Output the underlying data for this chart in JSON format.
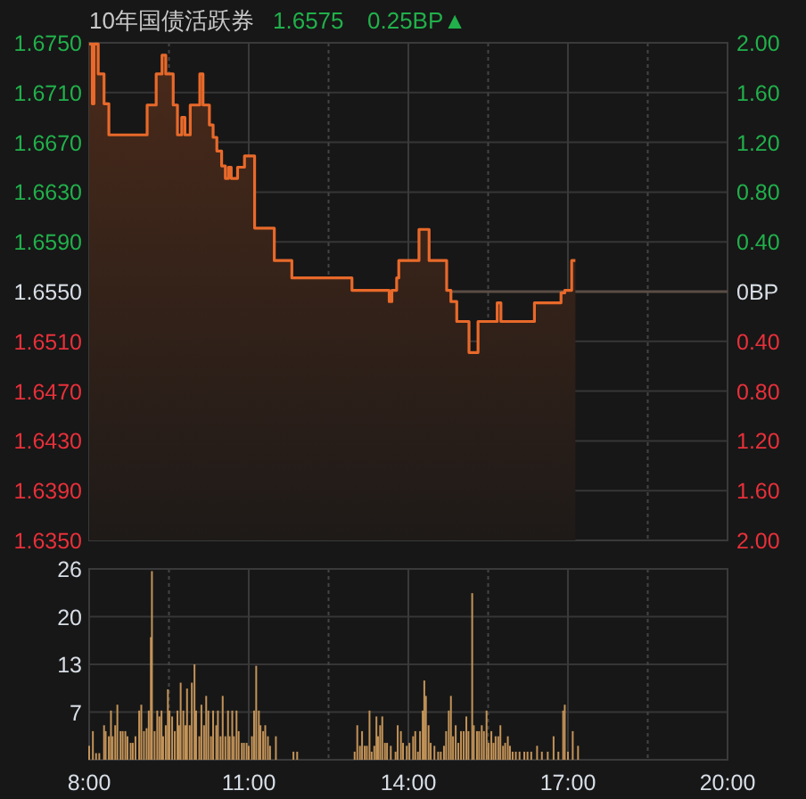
{
  "chart_data": [
    {
      "type": "area",
      "title": "10年国债活跃券",
      "annotations": [
        "1.6575",
        "0.25BP▲"
      ],
      "x": [
        8.0,
        8.06,
        8.06,
        8.09,
        8.09,
        8.17,
        8.17,
        8.28,
        8.28,
        8.37,
        8.37,
        9.09,
        9.09,
        9.26,
        9.26,
        9.37,
        9.37,
        9.44,
        9.44,
        9.58,
        9.58,
        9.66,
        9.66,
        9.74,
        9.74,
        9.8,
        9.8,
        9.9,
        9.9,
        10.08,
        10.08,
        10.14,
        10.14,
        10.26,
        10.26,
        10.33,
        10.33,
        10.4,
        10.4,
        10.49,
        10.49,
        10.56,
        10.56,
        10.62,
        10.62,
        10.67,
        10.67,
        10.79,
        10.79,
        10.92,
        10.92,
        11.11,
        11.11,
        11.48,
        11.48,
        11.81,
        11.81,
        12.94,
        12.94,
        13.64,
        13.64,
        13.69,
        13.69,
        13.78,
        13.78,
        13.82,
        13.82,
        14.2,
        14.2,
        14.39,
        14.39,
        14.72,
        14.72,
        14.8,
        14.8,
        14.91,
        14.91,
        15.14,
        15.14,
        15.31,
        15.31,
        15.67,
        15.67,
        15.74,
        15.74,
        16.37,
        16.37,
        16.87,
        16.87,
        16.94,
        16.94,
        17.07,
        17.07,
        17.14
      ],
      "series": [
        {
          "color": "#e8692a",
          "values": [
            1.6749,
            1.6749,
            1.6701,
            1.6701,
            1.6749,
            1.6749,
            1.6725,
            1.6725,
            1.6701,
            1.6701,
            1.6676,
            1.6676,
            1.67,
            1.67,
            1.6725,
            1.6725,
            1.674,
            1.674,
            1.6725,
            1.6725,
            1.67,
            1.67,
            1.6676,
            1.6676,
            1.669,
            1.669,
            1.6676,
            1.6676,
            1.67,
            1.67,
            1.6725,
            1.6725,
            1.67,
            1.67,
            1.6684,
            1.6684,
            1.6674,
            1.6674,
            1.6663,
            1.6663,
            1.6651,
            1.6651,
            1.6641,
            1.6641,
            1.665,
            1.665,
            1.6641,
            1.6641,
            1.665,
            1.665,
            1.6659,
            1.6659,
            1.6601,
            1.6601,
            1.6575,
            1.6575,
            1.6561,
            1.6561,
            1.6551,
            1.6551,
            1.6542,
            1.6542,
            1.6551,
            1.6551,
            1.6561,
            1.6561,
            1.6575,
            1.6575,
            1.66,
            1.66,
            1.6575,
            1.6575,
            1.6551,
            1.6551,
            1.6542,
            1.6542,
            1.6526,
            1.6526,
            1.6501,
            1.6501,
            1.6526,
            1.6526,
            1.6541,
            1.6541,
            1.6526,
            1.6526,
            1.6541,
            1.6541,
            1.6549,
            1.6549,
            1.6551,
            1.6551,
            1.6575,
            1.6575
          ]
        }
      ],
      "xlim": [
        8,
        20
      ],
      "xticks": [
        {
          "value": 8,
          "label": null
        },
        {
          "value": 9.5,
          "label": null
        },
        {
          "value": 11,
          "label": null
        },
        {
          "value": 12.5,
          "label": null
        },
        {
          "value": 14,
          "label": null
        },
        {
          "value": 15.5,
          "label": null
        },
        {
          "value": 17,
          "label": null
        },
        {
          "value": 18.5,
          "label": null
        },
        {
          "value": 20,
          "label": null
        }
      ],
      "ylim": [
        1.635,
        1.675
      ],
      "yticks": [
        {
          "value": 1.675,
          "label": "1.6750"
        },
        {
          "value": 1.671,
          "label": "1.6710"
        },
        {
          "value": 1.667,
          "label": "1.6670"
        },
        {
          "value": 1.663,
          "label": "1.6630"
        },
        {
          "value": 1.659,
          "label": "1.6590"
        },
        {
          "value": 1.655,
          "label": "1.6550"
        },
        {
          "value": 1.651,
          "label": "1.6510"
        },
        {
          "value": 1.647,
          "label": "1.6470"
        },
        {
          "value": 1.643,
          "label": "1.6430"
        },
        {
          "value": 1.639,
          "label": "1.6390"
        },
        {
          "value": 1.635,
          "label": "1.6350"
        }
      ],
      "y2lim": [
        -2,
        2
      ],
      "y2ticks": [
        {
          "value": 2,
          "label": "2.00"
        },
        {
          "value": 1.6,
          "label": "1.60"
        },
        {
          "value": 1.2,
          "label": "1.20"
        },
        {
          "value": 0.8,
          "label": "0.80"
        },
        {
          "value": 0.4,
          "label": "0.40"
        },
        {
          "value": 0,
          "label": "0BP"
        },
        {
          "value": -0.4,
          "label": "0.40"
        },
        {
          "value": -0.8,
          "label": "0.80"
        },
        {
          "value": -1.2,
          "label": "1.20"
        },
        {
          "value": -1.6,
          "label": "1.60"
        },
        {
          "value": -2,
          "label": "2.00"
        }
      ],
      "ref_lines": [
        {
          "axis": "y",
          "value": 1.655,
          "color": "#5b4d45"
        }
      ],
      "grid": true,
      "tick_labels": "y"
    },
    {
      "type": "bar",
      "color": "#c39358",
      "x": [
        8.0,
        8.07,
        8.13,
        8.19,
        8.28,
        8.31,
        8.37,
        8.41,
        8.44,
        8.49,
        8.53,
        8.59,
        8.63,
        8.68,
        8.72,
        8.78,
        8.82,
        8.87,
        8.94,
        8.98,
        9.03,
        9.08,
        9.12,
        9.16,
        9.18,
        9.23,
        9.28,
        9.32,
        9.36,
        9.39,
        9.44,
        9.48,
        9.51,
        9.56,
        9.61,
        9.66,
        9.69,
        9.72,
        9.77,
        9.81,
        9.84,
        9.89,
        9.93,
        9.98,
        10.01,
        10.07,
        10.11,
        10.16,
        10.2,
        10.24,
        10.29,
        10.33,
        10.39,
        10.42,
        10.47,
        10.51,
        10.56,
        10.61,
        10.64,
        10.69,
        10.72,
        10.77,
        10.81,
        10.87,
        10.91,
        10.96,
        11.0,
        11.06,
        11.1,
        11.14,
        11.19,
        11.22,
        11.27,
        11.31,
        11.36,
        11.4,
        11.51,
        11.84,
        11.91,
        12.99,
        13.04,
        13.09,
        13.13,
        13.18,
        13.22,
        13.27,
        13.31,
        13.36,
        13.4,
        13.43,
        13.47,
        13.51,
        13.56,
        13.6,
        13.67,
        13.76,
        13.8,
        13.86,
        13.9,
        13.97,
        14.02,
        14.09,
        14.13,
        14.18,
        14.22,
        14.27,
        14.3,
        14.33,
        14.38,
        14.42,
        14.49,
        14.56,
        14.61,
        14.67,
        14.71,
        14.76,
        14.8,
        14.84,
        14.89,
        14.94,
        14.99,
        15.04,
        15.09,
        15.13,
        15.2,
        15.23,
        15.29,
        15.33,
        15.38,
        15.42,
        15.47,
        15.51,
        15.56,
        15.6,
        15.64,
        15.69,
        15.73,
        15.78,
        15.82,
        15.87,
        15.91,
        15.96,
        16.02,
        16.09,
        16.18,
        16.24,
        16.31,
        16.42,
        16.51,
        16.62,
        16.73,
        16.82,
        16.91,
        16.94,
        17.0,
        17.09,
        17.19
      ],
      "values": [
        1.9,
        3.9,
        0.9,
        0.9,
        4.7,
        3.9,
        3.2,
        6.7,
        3.2,
        4.7,
        7.5,
        3.9,
        3.9,
        3.9,
        3.2,
        2.3,
        2.3,
        3.2,
        6.7,
        7.5,
        3.9,
        4.3,
        6.7,
        16.7,
        25.7,
        3.9,
        6.7,
        5.9,
        6.7,
        3.2,
        4.7,
        9.6,
        6.7,
        5.9,
        3.9,
        6.7,
        4.7,
        10.5,
        6.7,
        4.7,
        9.7,
        4.7,
        10.5,
        13.0,
        6.7,
        3.2,
        7.5,
        4.7,
        8.7,
        6.7,
        3.2,
        6.7,
        4.7,
        6.7,
        3.2,
        8.7,
        3.2,
        6.7,
        3.2,
        6.7,
        3.2,
        6.7,
        3.9,
        2.3,
        2.3,
        2.3,
        1.9,
        3.2,
        6.7,
        12.8,
        6.7,
        4.7,
        3.9,
        4.7,
        3.2,
        1.9,
        3.2,
        1.1,
        1.1,
        1.1,
        4.7,
        1.9,
        3.9,
        1.9,
        1.9,
        6.7,
        1.1,
        1.9,
        5.9,
        3.2,
        4.7,
        5.9,
        2.3,
        2.3,
        1.9,
        1.1,
        4.7,
        3.9,
        2.3,
        1.9,
        2.3,
        3.2,
        3.9,
        1.1,
        3.9,
        6.7,
        10.8,
        8.7,
        4.7,
        2.3,
        1.9,
        1.1,
        1.1,
        1.9,
        3.9,
        6.7,
        8.7,
        3.2,
        4.7,
        2.3,
        3.9,
        3.9,
        5.9,
        3.9,
        22.7,
        4.7,
        3.9,
        3.9,
        4.7,
        3.9,
        6.7,
        2.3,
        3.9,
        2.3,
        3.2,
        3.2,
        4.7,
        1.9,
        2.3,
        3.2,
        1.9,
        1.1,
        1.1,
        1.1,
        1.1,
        1.1,
        1.1,
        1.9,
        1.1,
        1.1,
        3.2,
        1.1,
        6.7,
        7.5,
        1.1,
        3.9,
        1.9
      ],
      "xlim": [
        8,
        20
      ],
      "xticks": [
        {
          "value": 8,
          "label": "8:00"
        },
        {
          "value": 9.5,
          "label": null
        },
        {
          "value": 11,
          "label": "11:00"
        },
        {
          "value": 12.5,
          "label": null
        },
        {
          "value": 14,
          "label": "14:00"
        },
        {
          "value": 15.5,
          "label": null
        },
        {
          "value": 17,
          "label": "17:00"
        },
        {
          "value": 18.5,
          "label": null
        },
        {
          "value": 20,
          "label": "20:00"
        }
      ],
      "ylim": [
        0,
        26
      ],
      "yticks": [
        26,
        {
          "value": 19.5,
          "label": "20"
        },
        13,
        {
          "value": 6.5,
          "label": "7"
        }
      ],
      "grid": true
    }
  ]
}
